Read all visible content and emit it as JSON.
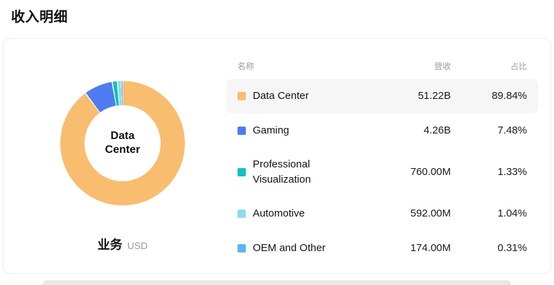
{
  "page": {
    "title": "收入明细"
  },
  "card": {
    "footer": {
      "label": "业务",
      "unit": "USD"
    }
  },
  "table": {
    "headers": {
      "name": "名称",
      "revenue": "营收",
      "share": "占比"
    }
  },
  "chart_data": {
    "type": "pie",
    "donut": true,
    "title": "收入明细",
    "center_label": "Data Center",
    "unit": "USD",
    "legend_position": "right",
    "highlighted_index": 0,
    "categories": [
      "Data Center",
      "Gaming",
      "Professional Visualization",
      "Automotive",
      "OEM and Other"
    ],
    "values": [
      51220000000,
      4260000000,
      760000000,
      592000000,
      174000000
    ],
    "value_labels": [
      "51.22B",
      "4.26B",
      "760.00M",
      "592.00M",
      "174.00M"
    ],
    "percentages": [
      89.84,
      7.48,
      1.33,
      1.04,
      0.31
    ],
    "percentage_labels": [
      "89.84%",
      "7.48%",
      "1.33%",
      "1.04%",
      "0.31%"
    ],
    "colors": [
      "#F8BD6F",
      "#4E7CF0",
      "#13C2BD",
      "#8FD9F2",
      "#5AB6F2"
    ],
    "highlight_row_color": "#f6f6f6"
  }
}
